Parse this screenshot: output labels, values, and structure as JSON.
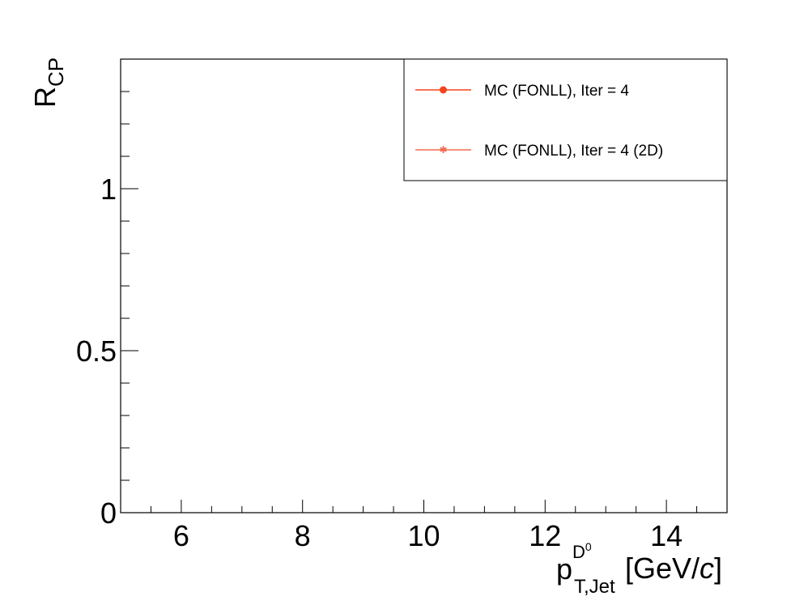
{
  "chart_data": {
    "type": "line",
    "title": "",
    "xlabel": {
      "base": "p",
      "sup": "D",
      "sup_sup": "0",
      "sub": "T,Jet",
      "units_pre": "[GeV/",
      "units_italic": "c",
      "units_post": "]"
    },
    "ylabel": {
      "base": "R",
      "sub": "CP"
    },
    "xlim": [
      5.0,
      15.0
    ],
    "ylim": [
      0,
      1.4
    ],
    "x_ticks": [
      6,
      8,
      10,
      12,
      14
    ],
    "x_tick_labels": [
      "6",
      "8",
      "10",
      "12",
      "14"
    ],
    "y_ticks": [
      0,
      0.5,
      1
    ],
    "y_tick_labels": [
      "0",
      "0.5",
      "1"
    ],
    "x_minor_step": 0.5,
    "y_minor_step": 0.1,
    "grid": false,
    "legend_position": "top-right",
    "series": [
      {
        "name": "MC (FONLL), Iter = 4",
        "color": "#f5431b",
        "marker": "circle",
        "x": [],
        "y": []
      },
      {
        "name": "MC (FONLL), Iter = 4 (2D)",
        "color": "#f26b4e",
        "marker": "star",
        "x": [],
        "y": []
      }
    ]
  }
}
